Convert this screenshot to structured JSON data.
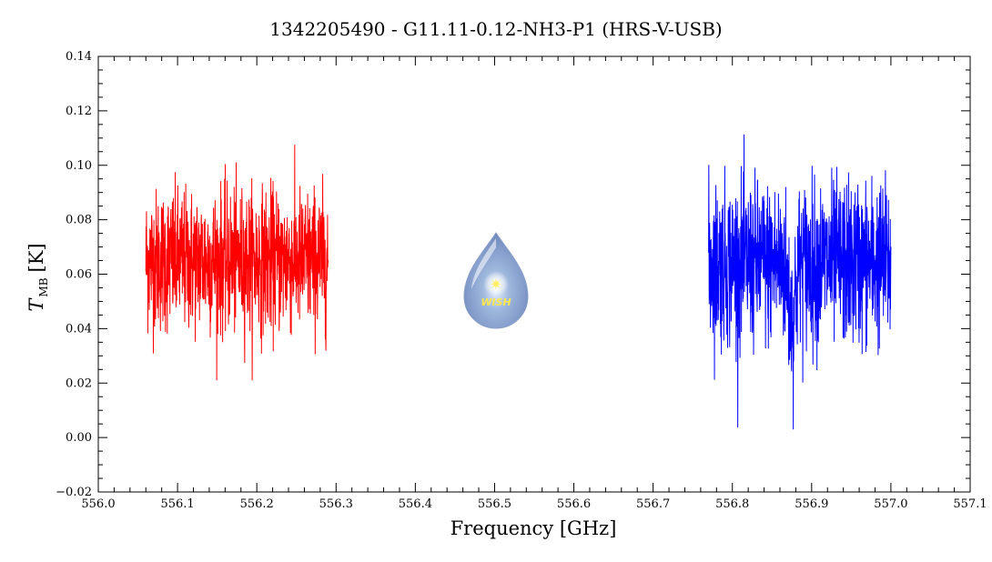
{
  "chart_data": {
    "type": "line",
    "title": "1342205490 - G11.11-0.12-NH3-P1 (HRS-V-USB)",
    "xlabel": "Frequency [GHz]",
    "ylabel": {
      "main": "T",
      "sub": "MB",
      "unit": "[K]"
    },
    "xlim": [
      556.0,
      557.1
    ],
    "ylim": [
      -0.02,
      0.14
    ],
    "x_ticks": [
      "556.0",
      "556.1",
      "556.2",
      "556.3",
      "556.4",
      "556.5",
      "556.6",
      "556.7",
      "556.8",
      "556.9",
      "557.0",
      "557.1"
    ],
    "y_ticks": [
      "0.14",
      "0.12",
      "0.10",
      "0.08",
      "0.06",
      "0.04",
      "0.02",
      "0.00",
      "−0.02"
    ],
    "grid": false,
    "series": [
      {
        "color": "#ff0000",
        "x_range": [
          556.06,
          556.29
        ],
        "baseline": 0.065,
        "noise_sd": 0.013,
        "min": 0.021,
        "max": 0.111
      },
      {
        "color": "#0000ff",
        "x_range": [
          556.77,
          557.0
        ],
        "baseline": 0.064,
        "noise_sd": 0.015,
        "min": -0.001,
        "max": 0.118
      }
    ],
    "logo": {
      "text": "WISH"
    }
  }
}
